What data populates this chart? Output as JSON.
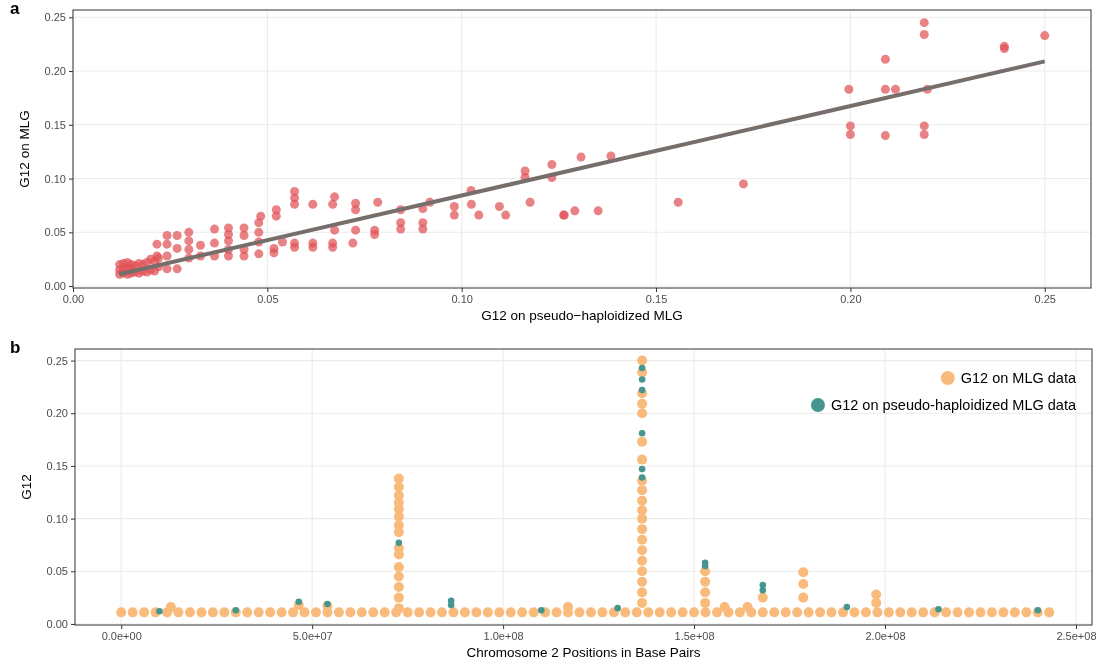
{
  "chart_data": [
    {
      "type": "scatter",
      "title": "a",
      "xlabel": "G12 on pseudo−haploidized MLG",
      "ylabel": "G12 on MLG",
      "xlim": [
        0,
        0.2619
      ],
      "ylim": [
        -0.0018,
        0.2568
      ],
      "xticks": [
        {
          "value": 0,
          "label": "0.00"
        },
        {
          "value": 0.05,
          "label": "0.05"
        },
        {
          "value": 0.1,
          "label": "0.10"
        },
        {
          "value": 0.15,
          "label": "0.15"
        },
        {
          "value": 0.2,
          "label": "0.20"
        },
        {
          "value": 0.25,
          "label": "0.25"
        }
      ],
      "yticks": [
        {
          "value": 0,
          "label": "0.00"
        },
        {
          "value": 0.05,
          "label": "0.05"
        },
        {
          "value": 0.1,
          "label": "0.10"
        },
        {
          "value": 0.15,
          "label": "0.15"
        },
        {
          "value": 0.2,
          "label": "0.20"
        },
        {
          "value": 0.25,
          "label": "0.25"
        }
      ],
      "grid": true,
      "marker": "circle",
      "legend": false,
      "series": [
        {
          "color": "#e05256",
          "x": [
            0.012,
            0.012,
            0.012,
            0.013,
            0.013,
            0.013,
            0.014,
            0.014,
            0.014,
            0.015,
            0.015,
            0.015,
            0.016,
            0.016,
            0.017,
            0.017,
            0.018,
            0.018,
            0.019,
            0.019,
            0.02,
            0.02,
            0.021,
            0.021,
            0.022,
            0.022,
            0.0216,
            0.0216,
            0.0242,
            0.0242,
            0.0242,
            0.0242,
            0.0268,
            0.0268,
            0.0268,
            0.0298,
            0.0298,
            0.0298,
            0.0298,
            0.0328,
            0.0328,
            0.0364,
            0.0364,
            0.0364,
            0.04,
            0.04,
            0.04,
            0.04,
            0.04,
            0.044,
            0.044,
            0.044,
            0.044,
            0.0478,
            0.0478,
            0.0478,
            0.0478,
            0.0483,
            0.0517,
            0.0517,
            0.0523,
            0.0523,
            0.0539,
            0.057,
            0.057,
            0.057,
            0.057,
            0.057,
            0.0617,
            0.0617,
            0.0617,
            0.0668,
            0.0668,
            0.0668,
            0.0673,
            0.0673,
            0.072,
            0.0727,
            0.0727,
            0.0727,
            0.0776,
            0.0776,
            0.0784,
            0.0843,
            0.0843,
            0.0843,
            0.09,
            0.09,
            0.09,
            0.0918,
            0.0981,
            0.0981,
            0.1024,
            0.1025,
            0.1044,
            0.1097,
            0.1113,
            0.1163,
            0.1163,
            0.1176,
            0.1232,
            0.1232,
            0.1262,
            0.1264,
            0.1291,
            0.1307,
            0.1351,
            0.1384,
            0.1557,
            0.1725,
            0.1996,
            0.2,
            0.2,
            0.209,
            0.209,
            0.209,
            0.2116,
            0.2198,
            0.219,
            0.219,
            0.219,
            0.219,
            0.2396,
            0.2396,
            0.25
          ],
          "values": [
            0.011,
            0.015,
            0.02,
            0.012,
            0.016,
            0.021,
            0.011,
            0.017,
            0.022,
            0.012,
            0.016,
            0.02,
            0.013,
            0.019,
            0.012,
            0.021,
            0.014,
            0.02,
            0.013,
            0.022,
            0.015,
            0.025,
            0.014,
            0.023,
            0.018,
            0.026,
            0.028,
            0.039,
            0.016,
            0.028,
            0.039,
            0.047,
            0.016,
            0.035,
            0.047,
            0.026,
            0.034,
            0.042,
            0.05,
            0.028,
            0.038,
            0.028,
            0.04,
            0.053,
            0.028,
            0.034,
            0.042,
            0.048,
            0.054,
            0.028,
            0.034,
            0.047,
            0.054,
            0.03,
            0.041,
            0.05,
            0.059,
            0.065,
            0.031,
            0.035,
            0.065,
            0.071,
            0.041,
            0.036,
            0.04,
            0.076,
            0.082,
            0.088,
            0.036,
            0.04,
            0.076,
            0.036,
            0.04,
            0.076,
            0.052,
            0.083,
            0.04,
            0.052,
            0.071,
            0.077,
            0.048,
            0.052,
            0.078,
            0.053,
            0.059,
            0.071,
            0.053,
            0.059,
            0.072,
            0.078,
            0.066,
            0.074,
            0.089,
            0.076,
            0.066,
            0.074,
            0.066,
            0.101,
            0.107,
            0.078,
            0.101,
            0.113,
            0.066,
            0.066,
            0.07,
            0.12,
            0.07,
            0.121,
            0.078,
            0.095,
            0.183,
            0.141,
            0.149,
            0.14,
            0.183,
            0.211,
            0.183,
            0.183,
            0.141,
            0.149,
            0.234,
            0.245,
            0.221,
            0.223,
            0.233
          ]
        },
        {
          "type": "line",
          "marker": "none",
          "color": "#766e6b",
          "x": [
            0.0119,
            0.25
          ],
          "values": [
            0.011,
            0.209
          ]
        }
      ]
    },
    {
      "type": "scatter",
      "title": "b",
      "xlabel": "Chromosome 2 Positions in Base Pairs",
      "ylabel": "G12",
      "xlim": [
        -12100000,
        254200000
      ],
      "ylim": [
        -0.001,
        0.261
      ],
      "xticks": [
        {
          "value": 0,
          "label": "0.0e+00"
        },
        {
          "value": 50000000,
          "label": "5.0e+07"
        },
        {
          "value": 100000000,
          "label": "1.0e+08"
        },
        {
          "value": 150000000,
          "label": "1.5e+08"
        },
        {
          "value": 200000000,
          "label": "2.0e+08"
        },
        {
          "value": 250000000,
          "label": "2.5e+08"
        }
      ],
      "yticks": [
        {
          "value": 0,
          "label": "0.00"
        },
        {
          "value": 0.05,
          "label": "0.05"
        },
        {
          "value": 0.1,
          "label": "0.10"
        },
        {
          "value": 0.15,
          "label": "0.15"
        },
        {
          "value": 0.2,
          "label": "0.20"
        },
        {
          "value": 0.25,
          "label": "0.25"
        }
      ],
      "grid": true,
      "marker": "circle",
      "legend": "top right",
      "series": [
        {
          "name": "G12 on MLG data",
          "color": "#f9bb7c",
          "x": [
            0,
            3000000,
            6000000,
            9000000,
            12000000,
            15000000,
            18000000,
            21000000,
            24000000,
            27000000,
            30000000,
            33000000,
            36000000,
            39000000,
            42000000,
            45000000,
            48000000,
            51000000,
            54000000,
            57000000,
            60000000,
            63000000,
            66000000,
            69000000,
            72000000,
            75000000,
            78000000,
            81000000,
            84000000,
            87000000,
            90000000,
            93000000,
            96000000,
            99000000,
            102000000,
            105000000,
            108000000,
            111000000,
            114000000,
            117000000,
            120000000,
            123000000,
            126000000,
            129000000,
            132000000,
            135000000,
            138000000,
            141000000,
            144000000,
            147000000,
            150000000,
            153000000,
            156000000,
            159000000,
            162000000,
            165000000,
            168000000,
            171000000,
            174000000,
            177000000,
            180000000,
            183000000,
            186000000,
            189000000,
            192000000,
            195000000,
            198000000,
            201000000,
            204000000,
            207000000,
            210000000,
            213000000,
            216000000,
            219000000,
            222000000,
            225000000,
            228000000,
            231000000,
            234000000,
            237000000,
            240000000,
            243000000,
            13000000,
            46500000,
            54000000,
            117000000,
            158000000,
            164000000,
            72700000,
            72700000,
            72700000,
            72700000,
            72700000,
            72700000,
            72700000,
            72700000,
            72700000,
            72700000,
            72700000,
            72700000,
            72700000,
            72700000,
            72700000,
            136400000,
            136400000,
            136400000,
            136400000,
            136400000,
            136400000,
            136400000,
            136400000,
            136400000,
            136400000,
            136400000,
            136400000,
            136400000,
            136400000,
            136400000,
            136400000,
            136400000,
            136400000,
            136400000,
            136400000,
            152900000,
            152900000,
            152900000,
            152900000,
            168000000,
            178600000,
            178600000,
            178600000,
            197700000,
            197700000
          ],
          "values": [
            0.011,
            0.011,
            0.011,
            0.011,
            0.011,
            0.011,
            0.011,
            0.011,
            0.011,
            0.011,
            0.011,
            0.011,
            0.011,
            0.011,
            0.011,
            0.011,
            0.011,
            0.011,
            0.011,
            0.011,
            0.011,
            0.011,
            0.011,
            0.011,
            0.011,
            0.011,
            0.011,
            0.011,
            0.011,
            0.011,
            0.011,
            0.011,
            0.011,
            0.011,
            0.011,
            0.011,
            0.011,
            0.011,
            0.011,
            0.011,
            0.011,
            0.011,
            0.011,
            0.011,
            0.011,
            0.011,
            0.011,
            0.011,
            0.011,
            0.011,
            0.011,
            0.011,
            0.011,
            0.011,
            0.011,
            0.011,
            0.011,
            0.011,
            0.011,
            0.011,
            0.011,
            0.011,
            0.011,
            0.011,
            0.011,
            0.011,
            0.011,
            0.011,
            0.011,
            0.011,
            0.011,
            0.011,
            0.011,
            0.011,
            0.011,
            0.011,
            0.011,
            0.011,
            0.011,
            0.011,
            0.011,
            0.011,
            0.016,
            0.018,
            0.017,
            0.016,
            0.016,
            0.016,
            0.015,
            0.025,
            0.035,
            0.045,
            0.054,
            0.066,
            0.072,
            0.087,
            0.094,
            0.102,
            0.109,
            0.115,
            0.122,
            0.13,
            0.138,
            0.02,
            0.03,
            0.04,
            0.05,
            0.06,
            0.07,
            0.08,
            0.09,
            0.1,
            0.108,
            0.117,
            0.127,
            0.136,
            0.156,
            0.173,
            0.2,
            0.209,
            0.219,
            0.239,
            0.25,
            0.02,
            0.03,
            0.04,
            0.05,
            0.025,
            0.025,
            0.038,
            0.049,
            0.02,
            0.028
          ]
        },
        {
          "name": "G12 on pseudo-haploidized MLG data",
          "color": "#44968f",
          "x": [
            10000000,
            30000000,
            46500000,
            54000000,
            72700000,
            86400000,
            86400000,
            110000000,
            130000000,
            136400000,
            136400000,
            136400000,
            136400000,
            136400000,
            136400000,
            152900000,
            152900000,
            168000000,
            168000000,
            190000000,
            214000000,
            240000000
          ],
          "values": [
            0.012,
            0.013,
            0.021,
            0.019,
            0.077,
            0.018,
            0.022,
            0.013,
            0.015,
            0.139,
            0.147,
            0.181,
            0.222,
            0.232,
            0.243,
            0.055,
            0.058,
            0.032,
            0.037,
            0.016,
            0.014,
            0.013
          ]
        }
      ]
    }
  ]
}
